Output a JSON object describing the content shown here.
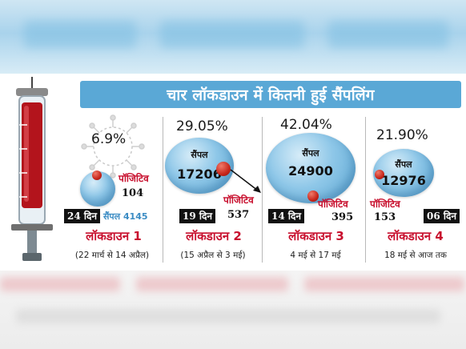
{
  "title": "चार लॉकडाउन में कितनी हुई सैंपलिंग",
  "sample_word": "सैंपल",
  "positive_word": "पॉजिटिव",
  "colors": {
    "header_blue": "#5aa8d6",
    "positive_red": "#c8102e",
    "sample_blue": "#3b8cc4"
  },
  "icons": [
    "syringe-icon",
    "virus-icon"
  ],
  "lockdowns": [
    {
      "name": "लॉकडाउन 1",
      "days": "24 दिन",
      "samples": "4145",
      "sample_total_text": "सैंपल 4145",
      "positive": "104",
      "percent": "6.9%",
      "range": "(22 मार्च से 14 अप्रैल)"
    },
    {
      "name": "लॉकडाउन 2",
      "days": "19 दिन",
      "samples": "17206",
      "positive": "537",
      "percent": "29.05%",
      "range": "(15 अप्रैल से 3 मई)"
    },
    {
      "name": "लॉकडाउन 3",
      "days": "14 दिन",
      "samples": "24900",
      "positive": "395",
      "percent": "42.04%",
      "range": "4 मई से 17 मई"
    },
    {
      "name": "लॉकडाउन 4",
      "days": "06 दिन",
      "samples": "12976",
      "positive": "153",
      "percent": "21.90%",
      "range": "18 मई से आज तक"
    }
  ]
}
